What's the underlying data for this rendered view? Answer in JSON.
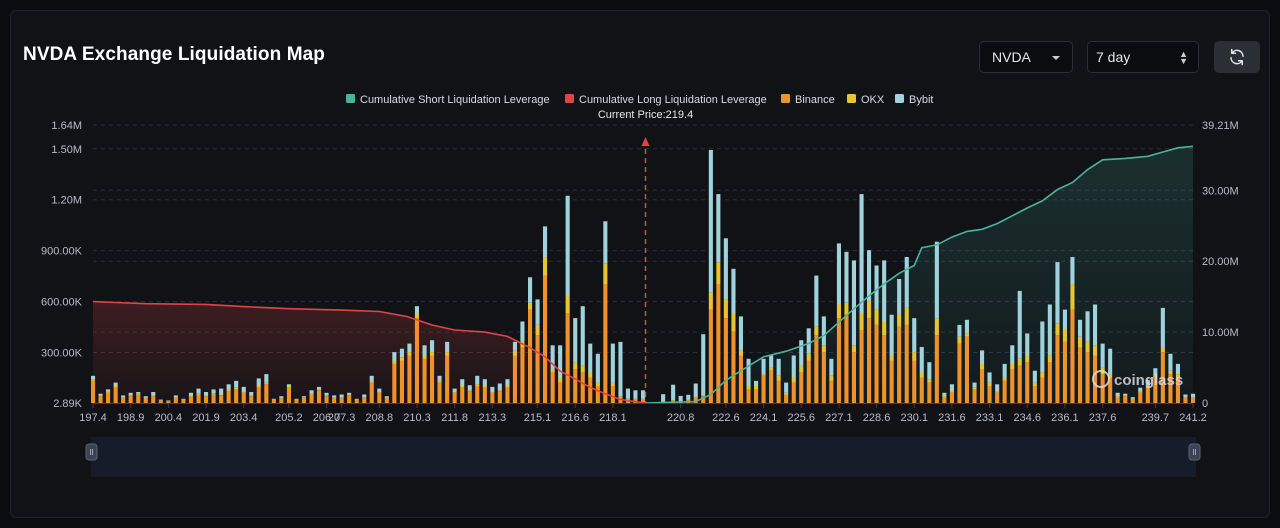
{
  "header": {
    "title": "NVDA Exchange Liquidation Map",
    "symbol": "NVDA",
    "range": "7 day"
  },
  "watermark": "coinglass",
  "colors": {
    "short_line": "#4bb39a",
    "long_line": "#e04545",
    "binance": "#f0922c",
    "okx": "#e6c531",
    "bybit": "#9ed3dd",
    "background": "#101216",
    "grid": "#2a2f37"
  },
  "chart_data": {
    "type": "bar",
    "title": "NVDA Exchange Liquidation Map",
    "current_price_label": "Current Price:219.4",
    "current_price": 219.4,
    "legend": [
      "Cumulative Short Liquidation Leverage",
      "Cumulative Long Liquidation Leverage",
      "Binance",
      "OKX",
      "Bybit"
    ],
    "legend_position": "top-center",
    "x_tick_labels": [
      "197.4",
      "198.9",
      "200.4",
      "201.9",
      "203.4",
      "205.2",
      "206.7",
      "207.3",
      "208.8",
      "210.3",
      "211.8",
      "213.3",
      "215.1",
      "216.6",
      "218.1",
      "220.8",
      "222.6",
      "224.1",
      "225.6",
      "227.1",
      "228.6",
      "230.1",
      "231.6",
      "233.1",
      "234.6",
      "236.1",
      "237.6",
      "239.7",
      "241.2"
    ],
    "x_range": [
      197.4,
      241.2
    ],
    "left_axis_ticks": [
      "1.64M",
      "1.50M",
      "1.20M",
      "900.00K",
      "600.00K",
      "300.00K",
      "2.89K"
    ],
    "left_axis_range": [
      2890,
      1640000
    ],
    "right_axis_ticks": [
      "39.21M",
      "30.00M",
      "20.00M",
      "10.00M",
      "0"
    ],
    "right_axis_range": [
      0,
      39210000
    ],
    "grid": true,
    "bar_width_price": 0.19,
    "series_names": [
      "Binance",
      "OKX",
      "Bybit"
    ],
    "bars": [
      [
        197.4,
        130000,
        10000,
        20000
      ],
      [
        197.7,
        40000,
        5000,
        10000
      ],
      [
        198.0,
        60000,
        5000,
        15000
      ],
      [
        198.3,
        90000,
        10000,
        20000
      ],
      [
        198.6,
        30000,
        5000,
        10000
      ],
      [
        198.9,
        40000,
        5000,
        15000
      ],
      [
        199.2,
        50000,
        5000,
        10000
      ],
      [
        199.5,
        30000,
        0,
        10000
      ],
      [
        199.8,
        40000,
        5000,
        20000
      ],
      [
        200.1,
        15000,
        0,
        5000
      ],
      [
        200.4,
        10000,
        0,
        5000
      ],
      [
        200.7,
        30000,
        5000,
        10000
      ],
      [
        201.0,
        20000,
        0,
        5000
      ],
      [
        201.3,
        35000,
        5000,
        20000
      ],
      [
        201.6,
        50000,
        5000,
        30000
      ],
      [
        201.9,
        40000,
        5000,
        20000
      ],
      [
        202.2,
        50000,
        5000,
        25000
      ],
      [
        202.5,
        45000,
        5000,
        35000
      ],
      [
        202.8,
        70000,
        10000,
        30000
      ],
      [
        203.1,
        80000,
        10000,
        40000
      ],
      [
        203.4,
        60000,
        5000,
        30000
      ],
      [
        203.7,
        40000,
        5000,
        20000
      ],
      [
        204.0,
        90000,
        10000,
        45000
      ],
      [
        204.3,
        110000,
        10000,
        50000
      ],
      [
        204.6,
        20000,
        0,
        5000
      ],
      [
        204.9,
        25000,
        5000,
        10000
      ],
      [
        205.2,
        90000,
        10000,
        10000
      ],
      [
        205.5,
        20000,
        0,
        5000
      ],
      [
        205.8,
        30000,
        5000,
        5000
      ],
      [
        206.1,
        50000,
        5000,
        20000
      ],
      [
        206.4,
        75000,
        5000,
        15000
      ],
      [
        206.7,
        40000,
        5000,
        15000
      ],
      [
        207.0,
        30000,
        5000,
        10000
      ],
      [
        207.3,
        30000,
        5000,
        15000
      ],
      [
        207.6,
        45000,
        5000,
        10000
      ],
      [
        207.9,
        20000,
        0,
        5000
      ],
      [
        208.2,
        30000,
        5000,
        15000
      ],
      [
        208.5,
        120000,
        10000,
        30000
      ],
      [
        208.8,
        60000,
        5000,
        20000
      ],
      [
        209.1,
        30000,
        0,
        10000
      ],
      [
        209.4,
        230000,
        20000,
        50000
      ],
      [
        209.7,
        250000,
        20000,
        50000
      ],
      [
        210.0,
        280000,
        20000,
        50000
      ],
      [
        210.3,
        500000,
        30000,
        40000
      ],
      [
        210.6,
        260000,
        20000,
        60000
      ],
      [
        210.9,
        280000,
        20000,
        70000
      ],
      [
        211.2,
        120000,
        10000,
        30000
      ],
      [
        211.5,
        280000,
        20000,
        60000
      ],
      [
        211.8,
        60000,
        5000,
        20000
      ],
      [
        212.1,
        90000,
        10000,
        40000
      ],
      [
        212.4,
        70000,
        5000,
        30000
      ],
      [
        212.7,
        100000,
        10000,
        50000
      ],
      [
        213.0,
        90000,
        10000,
        40000
      ],
      [
        213.3,
        60000,
        5000,
        30000
      ],
      [
        213.6,
        70000,
        5000,
        40000
      ],
      [
        213.9,
        90000,
        10000,
        40000
      ],
      [
        214.2,
        280000,
        30000,
        50000
      ],
      [
        214.5,
        330000,
        30000,
        120000
      ],
      [
        214.8,
        550000,
        40000,
        150000
      ],
      [
        215.1,
        400000,
        60000,
        150000
      ],
      [
        215.4,
        750000,
        110000,
        180000
      ],
      [
        215.7,
        180000,
        20000,
        140000
      ],
      [
        216.0,
        120000,
        30000,
        190000
      ],
      [
        216.3,
        530000,
        100000,
        590000
      ],
      [
        216.6,
        200000,
        40000,
        260000
      ],
      [
        216.9,
        180000,
        40000,
        350000
      ],
      [
        217.2,
        150000,
        30000,
        170000
      ],
      [
        217.5,
        100000,
        20000,
        170000
      ],
      [
        217.8,
        700000,
        120000,
        250000
      ],
      [
        218.1,
        100000,
        20000,
        230000
      ],
      [
        218.4,
        30000,
        10000,
        320000
      ],
      [
        218.7,
        20000,
        5000,
        60000
      ],
      [
        219.0,
        20000,
        5000,
        50000
      ],
      [
        219.3,
        20000,
        5000,
        50000
      ],
      [
        220.1,
        10000,
        2000,
        40000
      ],
      [
        220.5,
        15000,
        3000,
        90000
      ],
      [
        220.8,
        10000,
        2000,
        30000
      ],
      [
        221.1,
        15000,
        3000,
        30000
      ],
      [
        221.4,
        30000,
        5000,
        80000
      ],
      [
        221.7,
        40000,
        5000,
        360000
      ],
      [
        222.0,
        550000,
        100000,
        840000
      ],
      [
        222.3,
        700000,
        130000,
        400000
      ],
      [
        222.6,
        500000,
        110000,
        360000
      ],
      [
        222.9,
        420000,
        110000,
        260000
      ],
      [
        223.2,
        280000,
        30000,
        200000
      ],
      [
        223.5,
        80000,
        20000,
        160000
      ],
      [
        223.8,
        80000,
        20000,
        30000
      ],
      [
        224.1,
        160000,
        10000,
        90000
      ],
      [
        224.4,
        190000,
        20000,
        70000
      ],
      [
        224.7,
        130000,
        30000,
        100000
      ],
      [
        225.0,
        50000,
        10000,
        60000
      ],
      [
        225.3,
        120000,
        30000,
        130000
      ],
      [
        225.6,
        180000,
        40000,
        150000
      ],
      [
        225.9,
        250000,
        40000,
        150000
      ],
      [
        226.2,
        400000,
        50000,
        300000
      ],
      [
        226.5,
        300000,
        40000,
        170000
      ],
      [
        226.8,
        130000,
        30000,
        100000
      ],
      [
        227.1,
        500000,
        80000,
        360000
      ],
      [
        227.4,
        520000,
        70000,
        300000
      ],
      [
        227.7,
        300000,
        40000,
        500000
      ],
      [
        228.0,
        430000,
        100000,
        700000
      ],
      [
        228.3,
        500000,
        100000,
        300000
      ],
      [
        228.6,
        460000,
        90000,
        260000
      ],
      [
        228.9,
        400000,
        80000,
        360000
      ],
      [
        229.2,
        250000,
        30000,
        240000
      ],
      [
        229.5,
        450000,
        80000,
        200000
      ],
      [
        229.8,
        460000,
        100000,
        300000
      ],
      [
        230.1,
        250000,
        50000,
        200000
      ],
      [
        230.4,
        150000,
        30000,
        150000
      ],
      [
        230.7,
        120000,
        20000,
        100000
      ],
      [
        231.0,
        400000,
        100000,
        450000
      ],
      [
        231.3,
        30000,
        10000,
        20000
      ],
      [
        231.6,
        60000,
        10000,
        40000
      ],
      [
        231.9,
        350000,
        40000,
        70000
      ],
      [
        232.2,
        390000,
        20000,
        80000
      ],
      [
        232.5,
        80000,
        10000,
        30000
      ],
      [
        232.8,
        200000,
        30000,
        80000
      ],
      [
        233.1,
        100000,
        20000,
        60000
      ],
      [
        233.4,
        60000,
        10000,
        40000
      ],
      [
        233.7,
        130000,
        20000,
        80000
      ],
      [
        234.0,
        200000,
        30000,
        110000
      ],
      [
        234.3,
        220000,
        40000,
        400000
      ],
      [
        234.6,
        240000,
        40000,
        130000
      ],
      [
        234.9,
        100000,
        20000,
        70000
      ],
      [
        235.2,
        150000,
        30000,
        300000
      ],
      [
        235.5,
        240000,
        40000,
        300000
      ],
      [
        235.8,
        400000,
        70000,
        360000
      ],
      [
        236.1,
        360000,
        70000,
        120000
      ],
      [
        236.4,
        550000,
        150000,
        160000
      ],
      [
        236.7,
        330000,
        60000,
        100000
      ],
      [
        237.0,
        300000,
        60000,
        180000
      ],
      [
        237.3,
        280000,
        60000,
        240000
      ],
      [
        237.6,
        170000,
        40000,
        140000
      ],
      [
        237.9,
        150000,
        20000,
        150000
      ],
      [
        238.2,
        30000,
        10000,
        20000
      ],
      [
        238.5,
        40000,
        5000,
        10000
      ],
      [
        238.8,
        20000,
        5000,
        10000
      ],
      [
        239.1,
        60000,
        10000,
        20000
      ],
      [
        239.4,
        90000,
        15000,
        30000
      ],
      [
        239.7,
        150000,
        15000,
        40000
      ],
      [
        240.0,
        300000,
        30000,
        230000
      ],
      [
        240.3,
        170000,
        20000,
        100000
      ],
      [
        240.6,
        150000,
        20000,
        60000
      ],
      [
        240.9,
        30000,
        5000,
        15000
      ],
      [
        241.2,
        30000,
        5000,
        20000
      ]
    ],
    "long_line": [
      [
        197.4,
        14300000
      ],
      [
        199.5,
        14000000
      ],
      [
        201.9,
        13900000
      ],
      [
        203.4,
        13600000
      ],
      [
        205.2,
        13300000
      ],
      [
        207.3,
        13100000
      ],
      [
        208.8,
        12900000
      ],
      [
        209.9,
        12200000
      ],
      [
        210.9,
        11000000
      ],
      [
        211.8,
        10300000
      ],
      [
        213.0,
        10000000
      ],
      [
        213.9,
        9400000
      ],
      [
        214.8,
        7800000
      ],
      [
        215.4,
        6500000
      ],
      [
        216.0,
        4500000
      ],
      [
        216.6,
        3400000
      ],
      [
        217.2,
        2200000
      ],
      [
        217.8,
        1300000
      ],
      [
        218.4,
        500000
      ],
      [
        219.4,
        0
      ]
    ],
    "short_line": [
      [
        219.4,
        0
      ],
      [
        221.4,
        200000
      ],
      [
        222.0,
        1200000
      ],
      [
        222.6,
        3200000
      ],
      [
        223.5,
        5200000
      ],
      [
        224.1,
        6500000
      ],
      [
        225.0,
        7300000
      ],
      [
        225.9,
        8400000
      ],
      [
        226.5,
        9500000
      ],
      [
        227.1,
        11400000
      ],
      [
        227.7,
        13300000
      ],
      [
        228.3,
        15100000
      ],
      [
        228.9,
        16800000
      ],
      [
        229.5,
        18300000
      ],
      [
        230.1,
        19400000
      ],
      [
        230.4,
        21900000
      ],
      [
        231.0,
        22300000
      ],
      [
        231.6,
        23400000
      ],
      [
        232.2,
        24200000
      ],
      [
        232.8,
        24500000
      ],
      [
        233.4,
        25300000
      ],
      [
        234.0,
        26400000
      ],
      [
        234.6,
        27500000
      ],
      [
        235.2,
        28500000
      ],
      [
        235.8,
        30100000
      ],
      [
        236.4,
        31100000
      ],
      [
        237.0,
        32900000
      ],
      [
        237.6,
        34300000
      ],
      [
        238.5,
        34500000
      ],
      [
        239.4,
        34800000
      ],
      [
        240.0,
        35400000
      ],
      [
        240.6,
        36000000
      ],
      [
        241.2,
        36200000
      ]
    ]
  }
}
